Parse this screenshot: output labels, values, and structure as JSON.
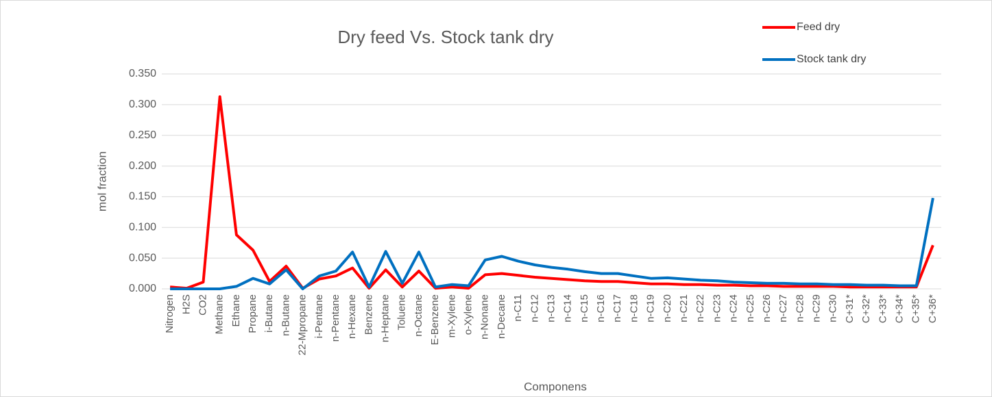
{
  "chart_data": {
    "type": "line",
    "title": "Dry feed Vs. Stock tank dry",
    "x_label": "Componens",
    "y_label": "mol fraction",
    "categories": [
      "Nitrogen",
      "H2S",
      "CO2",
      "Methane",
      "Ethane",
      "Propane",
      "i-Butane",
      "n-Butane",
      "22-Mpropane",
      "i-Pentane",
      "n-Pentane",
      "n-Hexane",
      "Benzene",
      "n-Heptane",
      "Toluene",
      "n-Octane",
      "E-Benzene",
      "m-Xylene",
      "o-Xylene",
      "n-Nonane",
      "n-Decane",
      "n-C11",
      "n-C12",
      "n-C13",
      "n-C14",
      "n-C15",
      "n-C16",
      "n-C17",
      "n-C18",
      "n-C19",
      "n-C20",
      "n-C21",
      "n-C22",
      "n-C23",
      "n-C24",
      "n-C25",
      "n-C26",
      "n-C27",
      "n-C28",
      "n-C29",
      "n-C30",
      "C+31*",
      "C+32*",
      "C+33*",
      "C+34*",
      "C+35*",
      "C+36*"
    ],
    "series": [
      {
        "name": "Feed dry",
        "color": "#ff0000",
        "values": [
          0.003,
          0.001,
          0.011,
          0.313,
          0.088,
          0.063,
          0.012,
          0.037,
          0.001,
          0.016,
          0.021,
          0.034,
          0.001,
          0.031,
          0.003,
          0.029,
          0.001,
          0.003,
          0.001,
          0.023,
          0.025,
          0.022,
          0.019,
          0.017,
          0.015,
          0.013,
          0.012,
          0.012,
          0.01,
          0.008,
          0.008,
          0.007,
          0.007,
          0.006,
          0.006,
          0.005,
          0.005,
          0.004,
          0.004,
          0.004,
          0.004,
          0.003,
          0.003,
          0.003,
          0.003,
          0.003,
          0.071
        ]
      },
      {
        "name": "Stock tank dry",
        "color": "#0070c0",
        "values": [
          0.0,
          0.0,
          0.0,
          0.0,
          0.004,
          0.017,
          0.008,
          0.031,
          0.0,
          0.021,
          0.029,
          0.06,
          0.003,
          0.061,
          0.009,
          0.06,
          0.003,
          0.007,
          0.005,
          0.047,
          0.053,
          0.045,
          0.039,
          0.035,
          0.032,
          0.028,
          0.025,
          0.025,
          0.021,
          0.017,
          0.018,
          0.016,
          0.014,
          0.013,
          0.011,
          0.01,
          0.009,
          0.009,
          0.008,
          0.008,
          0.007,
          0.007,
          0.006,
          0.006,
          0.005,
          0.005,
          0.148
        ]
      }
    ],
    "ylim": [
      0,
      0.35
    ],
    "yticks": [
      {
        "value": 0,
        "label": "0.000"
      },
      {
        "value": 0.05,
        "label": "0.050"
      },
      {
        "value": 0.1,
        "label": "0.100"
      },
      {
        "value": 0.15,
        "label": "0.150"
      },
      {
        "value": 0.2,
        "label": "0.200"
      },
      {
        "value": 0.25,
        "label": "0.250"
      },
      {
        "value": 0.3,
        "label": "0.300"
      },
      {
        "value": 0.35,
        "label": "0.350"
      }
    ],
    "grid": true,
    "legend": "top-right"
  }
}
